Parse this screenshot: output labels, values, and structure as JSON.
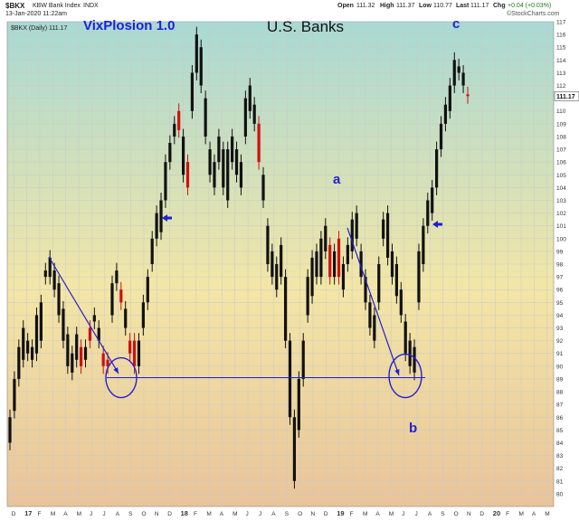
{
  "header": {
    "symbol": "$BKX",
    "name": "KBW Bank Index",
    "exchange": "INDX",
    "date": "13-Jan-2020 11:22am",
    "open_label": "Open",
    "open": "111.32",
    "high_label": "High",
    "high": "111.37",
    "low_label": "Low",
    "low": "110.77",
    "last_label": "Last",
    "last": "111.17",
    "chg_label": "Chg",
    "chg": "+0.04 (+0.03%)",
    "brand": "©StockCharts.com",
    "legend": "$BKX (Daily) 111.17"
  },
  "annotations": {
    "vixplosion": "VixPlosion 1.0",
    "title": "U.S. Banks",
    "wave_a": "a",
    "wave_b": "b",
    "wave_c": "c",
    "annotation_color": "#1f1fd6"
  },
  "colors": {
    "up": "#111111",
    "down": "#cc1111",
    "bg_top": "#a8d9d4",
    "bg_mid": "#f3e6a6",
    "bg_bottom": "#e9c49a",
    "grid": "#c9c9c9"
  },
  "chart_data": {
    "type": "candlestick",
    "title": "U.S. Banks",
    "ylim": [
      79,
      117
    ],
    "ytick_step": 1,
    "y_axis_side": "right",
    "last_price_tag": "111.17",
    "x_tick_labels": [
      "D",
      "17",
      "F",
      "M",
      "A",
      "M",
      "J",
      "J",
      "A",
      "S",
      "O",
      "N",
      "D",
      "18",
      "F",
      "M",
      "A",
      "M",
      "J",
      "J",
      "A",
      "S",
      "O",
      "N",
      "D",
      "19",
      "F",
      "M",
      "A",
      "M",
      "J",
      "J",
      "A",
      "S",
      "O",
      "N",
      "D",
      "20",
      "F",
      "M",
      "A",
      "M"
    ],
    "support_level": 89.1,
    "series": [
      {
        "values": [
          [
            84,
            86
          ],
          [
            86.5,
            89
          ],
          [
            89,
            91.5
          ],
          [
            90.5,
            93
          ],
          [
            91,
            92
          ],
          [
            90.5,
            91.5
          ],
          [
            91,
            94
          ],
          [
            92,
            95
          ],
          [
            97,
            97.5
          ],
          [
            97,
            98.5
          ],
          [
            96,
            97.5
          ],
          [
            94,
            96.5
          ],
          [
            92,
            94.5
          ],
          [
            90,
            92.5
          ],
          [
            89.5,
            91
          ],
          [
            90.5,
            92.5
          ],
          [
            91.5,
            90
          ],
          [
            90.5,
            91.5
          ],
          [
            93,
            92
          ],
          [
            93.5,
            94
          ],
          [
            92,
            93
          ],
          [
            91,
            90
          ],
          [
            90.5,
            90
          ],
          [
            94,
            96.5
          ],
          [
            96.5,
            97.5
          ],
          [
            96,
            95
          ],
          [
            93,
            94.5
          ],
          [
            92,
            91
          ],
          [
            92,
            90
          ],
          [
            90,
            92
          ],
          [
            93,
            95
          ],
          [
            95,
            97
          ],
          [
            98,
            100
          ],
          [
            100,
            102
          ],
          [
            100.5,
            103
          ],
          [
            103,
            106
          ],
          [
            106,
            107.5
          ],
          [
            108,
            109
          ],
          [
            110,
            108.5
          ],
          [
            105,
            108
          ],
          [
            106,
            104
          ],
          [
            110,
            113
          ],
          [
            113,
            116
          ],
          [
            112,
            115
          ],
          [
            108,
            111
          ],
          [
            105,
            107
          ],
          [
            104,
            106
          ],
          [
            106,
            108
          ],
          [
            104,
            107
          ],
          [
            103,
            107
          ],
          [
            106,
            108
          ],
          [
            105,
            107
          ],
          [
            104,
            106
          ],
          [
            108,
            111
          ],
          [
            110,
            112
          ],
          [
            109,
            110.5
          ],
          [
            109,
            106
          ],
          [
            103,
            105
          ],
          [
            98,
            101
          ],
          [
            97,
            99
          ],
          [
            96,
            98
          ],
          [
            97,
            99.5
          ],
          [
            92,
            97
          ],
          [
            86,
            92
          ],
          [
            81,
            86
          ],
          [
            85,
            89
          ],
          [
            89,
            92
          ],
          [
            94,
            97
          ],
          [
            95.5,
            98.5
          ],
          [
            97,
            99
          ],
          [
            97,
            100
          ],
          [
            99,
            101
          ],
          [
            99.5,
            97
          ],
          [
            97,
            99
          ],
          [
            100,
            97
          ],
          [
            96,
            98
          ],
          [
            98,
            99.5
          ],
          [
            99,
            101.5
          ],
          [
            100,
            102
          ],
          [
            97,
            99
          ],
          [
            95,
            97
          ],
          [
            93,
            95
          ],
          [
            92,
            94
          ],
          [
            95,
            98
          ],
          [
            100,
            101.5
          ],
          [
            98.5,
            102
          ],
          [
            97,
            99
          ],
          [
            95.5,
            98
          ],
          [
            94,
            96
          ],
          [
            91,
            93.5
          ],
          [
            90,
            92
          ],
          [
            89.5,
            91.5
          ],
          [
            95,
            99
          ],
          [
            98,
            101
          ],
          [
            101,
            103
          ],
          [
            102,
            104
          ],
          [
            104,
            107
          ],
          [
            107,
            109
          ],
          [
            109,
            110.5
          ],
          [
            110,
            112
          ],
          [
            112,
            114
          ],
          [
            113,
            113.5
          ],
          [
            112,
            113
          ],
          [
            111.3,
            111.17
          ]
        ]
      }
    ]
  }
}
